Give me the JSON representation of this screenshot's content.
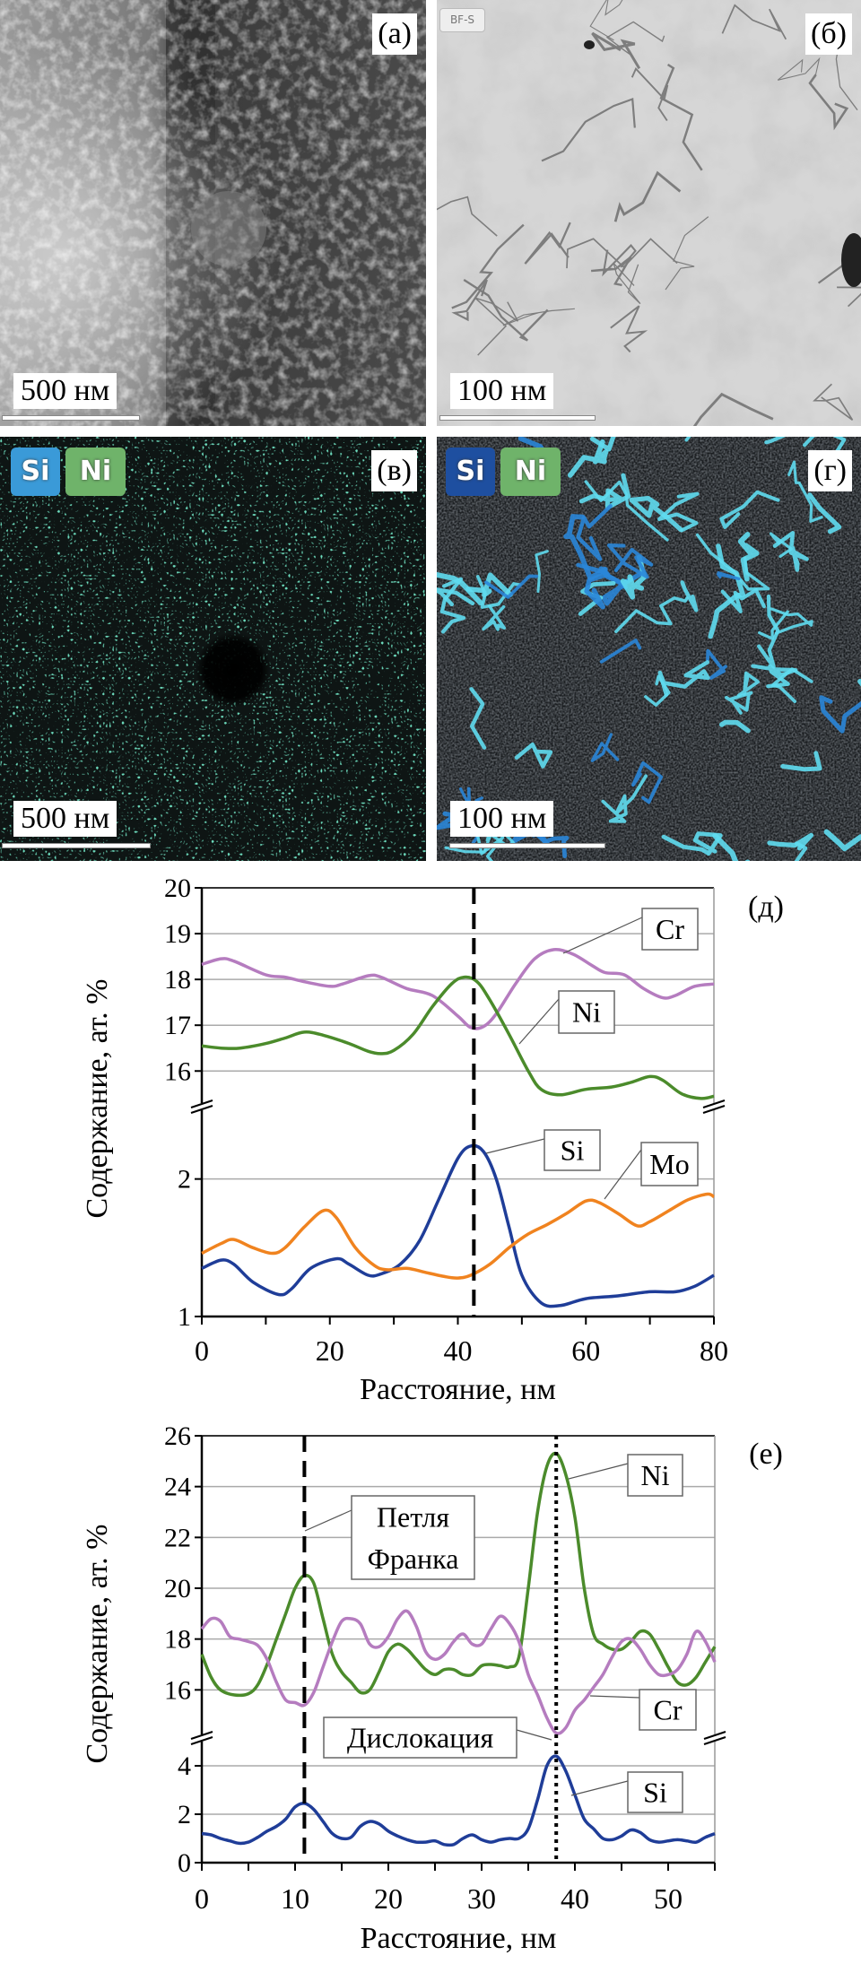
{
  "panels": {
    "a": {
      "label": "(а)",
      "scale": "500 нм"
    },
    "b": {
      "label": "(б)",
      "scale": "100 нм",
      "mode_badge": "BF-S"
    },
    "c": {
      "label": "(в)",
      "scale": "500 нм",
      "badges": [
        "Si",
        "Ni"
      ]
    },
    "d": {
      "label": "(г)",
      "scale": "100 нм",
      "badges": [
        "Si",
        "Ni"
      ]
    }
  },
  "colors": {
    "Cr": "#b57cbf",
    "Ni": "#4b8b2b",
    "Si": "#1f3d98",
    "Mo": "#f0831f",
    "si_badge_c": "#3a9ad8",
    "si_badge_d": "#1e4fa0",
    "ni_badge": "#6fb36a"
  },
  "chart_data": [
    {
      "type": "line",
      "panel_label": "(д)",
      "xlabel": "Расстояние, нм",
      "ylabel": "Содержание, ат. %",
      "xlim": [
        0,
        80
      ],
      "xticks": [
        0,
        20,
        40,
        60,
        80
      ],
      "broken_y_axis": true,
      "upper_ylim": [
        15.3,
        20
      ],
      "upper_yticks": [
        16,
        17,
        18,
        19,
        20
      ],
      "lower_ylim": [
        1,
        2.5
      ],
      "lower_yticks": [
        1,
        2
      ],
      "grid": true,
      "vertical_markers": [
        {
          "x": 42.5,
          "style": "dashed"
        }
      ],
      "annotations": [
        "Cr",
        "Ni",
        "Si",
        "Mo"
      ],
      "series": [
        {
          "name": "Cr",
          "segment": "upper",
          "x": [
            0,
            3,
            5,
            10,
            13,
            16,
            20,
            22,
            26,
            28,
            32,
            36,
            40,
            42,
            44,
            46,
            49,
            52,
            55,
            58,
            61,
            63,
            66,
            69,
            72,
            74,
            77,
            80
          ],
          "y": [
            18.33,
            18.45,
            18.4,
            18.1,
            18.05,
            17.95,
            17.85,
            17.9,
            18.08,
            18.05,
            17.8,
            17.65,
            17.2,
            16.95,
            16.97,
            17.25,
            17.9,
            18.45,
            18.65,
            18.55,
            18.3,
            18.15,
            18.1,
            17.8,
            17.6,
            17.65,
            17.85,
            17.9
          ]
        },
        {
          "name": "Ni",
          "segment": "upper",
          "x": [
            0,
            3,
            6,
            10,
            13,
            16,
            19,
            23,
            26,
            28,
            30,
            33,
            36,
            39,
            41,
            43,
            45,
            48,
            51,
            53,
            56,
            60,
            64,
            67,
            70,
            72,
            75,
            78,
            80
          ],
          "y": [
            16.55,
            16.5,
            16.5,
            16.6,
            16.72,
            16.85,
            16.78,
            16.6,
            16.43,
            16.38,
            16.45,
            16.8,
            17.4,
            17.9,
            18.05,
            17.95,
            17.55,
            16.8,
            16.0,
            15.6,
            15.48,
            15.6,
            15.65,
            15.75,
            15.88,
            15.8,
            15.5,
            15.4,
            15.45
          ]
        },
        {
          "name": "Si",
          "segment": "lower",
          "x": [
            0,
            3,
            5,
            8,
            12,
            14,
            17,
            21,
            23,
            26,
            28,
            31,
            34,
            37,
            40,
            42,
            44,
            46,
            48,
            50,
            53,
            56,
            60,
            65,
            70,
            74,
            77,
            80
          ],
          "y": [
            1.35,
            1.41,
            1.38,
            1.25,
            1.16,
            1.2,
            1.35,
            1.42,
            1.38,
            1.3,
            1.31,
            1.38,
            1.55,
            1.85,
            2.15,
            2.24,
            2.2,
            2.0,
            1.65,
            1.3,
            1.1,
            1.08,
            1.13,
            1.15,
            1.18,
            1.18,
            1.22,
            1.3
          ]
        },
        {
          "name": "Mo",
          "segment": "lower",
          "x": [
            0,
            3,
            5,
            8,
            11,
            13,
            16,
            19,
            21,
            24,
            27,
            29,
            32,
            35,
            38,
            40,
            42,
            45,
            48,
            51,
            54,
            57,
            60,
            62,
            65,
            68,
            70,
            73,
            76,
            79,
            80
          ],
          "y": [
            1.46,
            1.53,
            1.56,
            1.5,
            1.46,
            1.5,
            1.65,
            1.77,
            1.72,
            1.5,
            1.37,
            1.34,
            1.35,
            1.32,
            1.29,
            1.28,
            1.3,
            1.38,
            1.5,
            1.6,
            1.67,
            1.75,
            1.84,
            1.83,
            1.75,
            1.66,
            1.69,
            1.77,
            1.85,
            1.89,
            1.87
          ]
        }
      ]
    },
    {
      "type": "line",
      "panel_label": "(е)",
      "xlabel": "Расстояние, нм",
      "ylabel": "Содержание, ат. %",
      "xlim": [
        0,
        55
      ],
      "xticks": [
        0,
        10,
        20,
        30,
        40,
        50
      ],
      "broken_y_axis": true,
      "upper_ylim": [
        14,
        26
      ],
      "upper_yticks": [
        16,
        18,
        20,
        22,
        24,
        26
      ],
      "lower_ylim": [
        0,
        5.26
      ],
      "lower_yticks": [
        0,
        2,
        4
      ],
      "grid": true,
      "vertical_markers": [
        {
          "x": 11,
          "style": "dashed"
        },
        {
          "x": 38,
          "style": "dotted"
        }
      ],
      "annotations": [
        "Ni",
        "Петля Франка",
        "Cr",
        "Дислокация",
        "Si"
      ],
      "series": [
        {
          "name": "Ni",
          "segment": "upper",
          "x": [
            0,
            1,
            2,
            3.5,
            5,
            6,
            7,
            8,
            9,
            10,
            11,
            12,
            13,
            14,
            15,
            16,
            17,
            18,
            19,
            20,
            21,
            22,
            23,
            24,
            25,
            26,
            27,
            28,
            29,
            30,
            31,
            32,
            33,
            34,
            35,
            36,
            37,
            38,
            39,
            40,
            41,
            42,
            43,
            44,
            45,
            46,
            47,
            48,
            49,
            50,
            51,
            52,
            53,
            54,
            55
          ],
          "y": [
            17.4,
            16.5,
            16.0,
            15.8,
            15.85,
            16.2,
            17.0,
            18.0,
            19.0,
            20.0,
            20.5,
            20.2,
            18.8,
            17.4,
            16.7,
            16.3,
            15.9,
            16.0,
            16.7,
            17.5,
            17.8,
            17.6,
            17.2,
            16.8,
            16.6,
            16.8,
            16.8,
            16.6,
            16.6,
            16.95,
            17.0,
            16.95,
            16.9,
            17.3,
            20.0,
            23.0,
            24.8,
            25.3,
            24.5,
            22.8,
            20.0,
            18.2,
            17.8,
            17.6,
            17.6,
            17.9,
            18.3,
            18.2,
            17.6,
            16.9,
            16.3,
            16.2,
            16.5,
            17.1,
            17.7
          ]
        },
        {
          "name": "Cr",
          "segment": "upper",
          "x": [
            0,
            1,
            2,
            3,
            4,
            5,
            6,
            7,
            8,
            9,
            10,
            11,
            12,
            13,
            14,
            15,
            16,
            17,
            18,
            19,
            20,
            21,
            22,
            23,
            24,
            25,
            26,
            27,
            28,
            29,
            30,
            31,
            32,
            33,
            34,
            35,
            36,
            37,
            38,
            39,
            40,
            41,
            42,
            43,
            44,
            45,
            46,
            47,
            48,
            49,
            50,
            51,
            52,
            53,
            54,
            55
          ],
          "y": [
            18.4,
            18.8,
            18.7,
            18.1,
            18.0,
            17.9,
            17.75,
            17.2,
            16.3,
            15.6,
            15.5,
            15.4,
            15.9,
            16.9,
            17.9,
            18.7,
            18.8,
            18.6,
            17.8,
            17.7,
            18.1,
            18.8,
            19.1,
            18.5,
            17.5,
            17.2,
            17.4,
            17.9,
            18.2,
            17.8,
            17.8,
            18.4,
            18.9,
            18.6,
            17.9,
            16.6,
            15.8,
            14.9,
            14.3,
            14.5,
            15.2,
            15.6,
            16.1,
            16.6,
            17.3,
            17.9,
            18.0,
            17.6,
            17.0,
            16.6,
            16.6,
            16.8,
            17.4,
            18.3,
            17.9,
            17.1
          ]
        },
        {
          "name": "Si",
          "segment": "lower",
          "x": [
            0,
            1,
            2,
            3,
            4,
            5,
            6,
            7,
            8,
            9,
            10,
            11,
            12,
            13,
            14,
            15,
            16,
            17,
            18,
            19,
            20,
            21,
            22,
            23,
            24,
            25,
            26,
            27,
            28,
            29,
            30,
            31,
            32,
            33,
            34,
            35,
            36,
            37,
            38,
            39,
            40,
            41,
            42,
            43,
            44,
            45,
            46,
            47,
            48,
            49,
            50,
            51,
            52,
            53,
            54,
            55
          ],
          "y": [
            1.2,
            1.15,
            1.0,
            0.9,
            0.8,
            0.85,
            1.05,
            1.3,
            1.5,
            1.8,
            2.3,
            2.45,
            2.2,
            1.7,
            1.2,
            1.0,
            1.05,
            1.5,
            1.7,
            1.6,
            1.3,
            1.1,
            0.95,
            0.85,
            0.85,
            0.9,
            0.75,
            0.75,
            1.0,
            1.15,
            0.95,
            0.85,
            0.95,
            1.0,
            1.0,
            1.4,
            2.6,
            4.0,
            4.4,
            3.8,
            2.8,
            1.8,
            1.4,
            1.0,
            0.95,
            1.1,
            1.35,
            1.25,
            0.95,
            0.85,
            0.9,
            0.95,
            0.9,
            0.85,
            1.05,
            1.2
          ]
        }
      ]
    }
  ]
}
